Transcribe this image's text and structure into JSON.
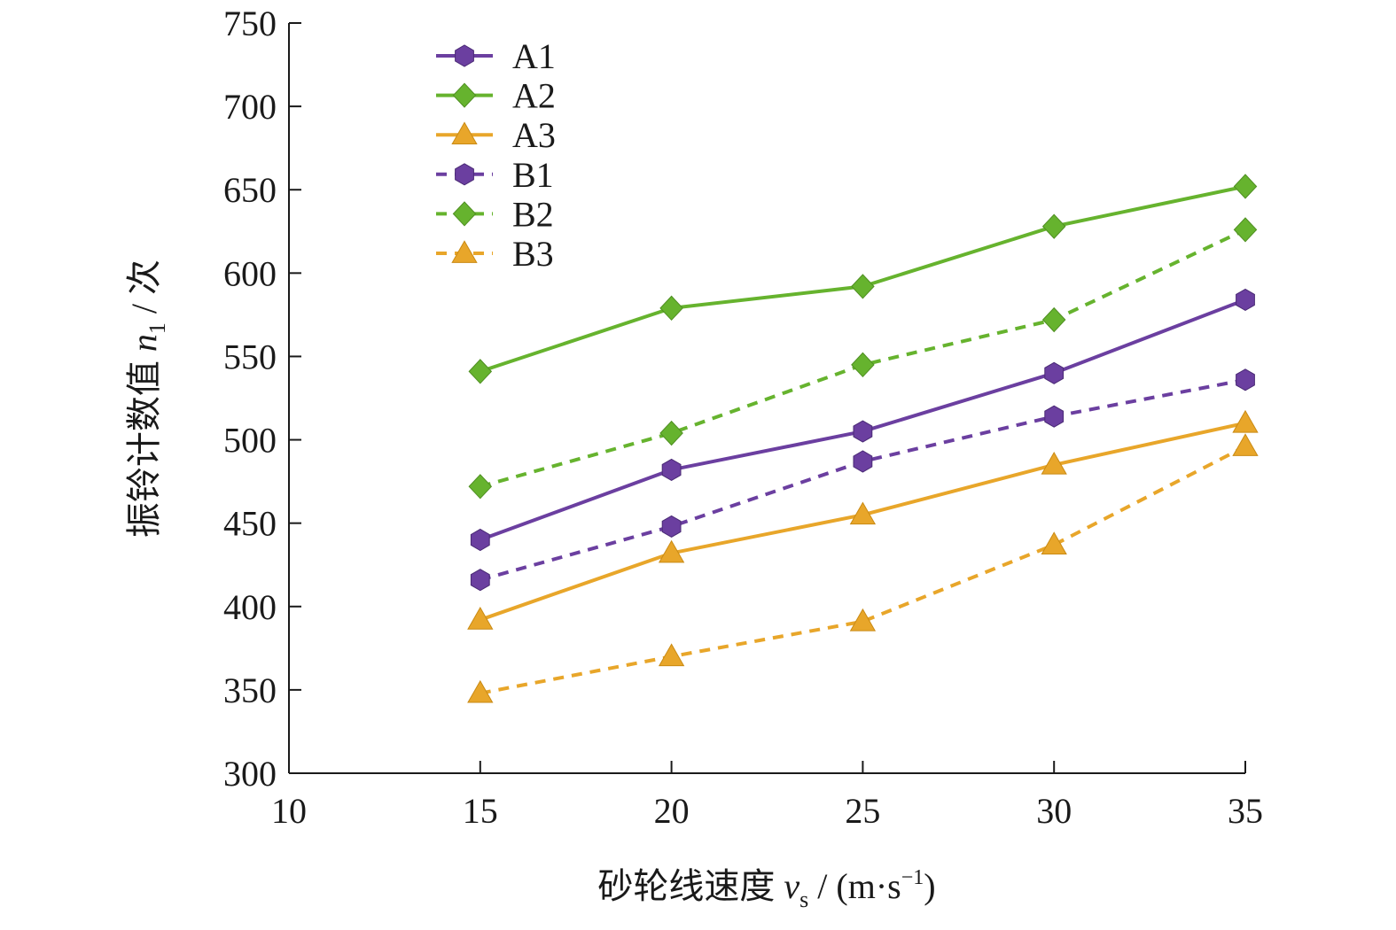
{
  "chart_data": {
    "type": "line",
    "title": "",
    "xlabel": {
      "prefix": "砂轮线速度 ",
      "var": "v",
      "sub": "s",
      "unit_open": " / (m·s",
      "sup": "−1",
      "unit_close": ")"
    },
    "ylabel": {
      "prefix": "振铃计数值 ",
      "var": "n",
      "sub": "1",
      "suffix": " / 次"
    },
    "xlim": [
      10,
      35
    ],
    "ylim": [
      300,
      750
    ],
    "xticks": [
      10,
      15,
      20,
      25,
      30,
      35
    ],
    "yticks": [
      300,
      350,
      400,
      450,
      500,
      550,
      600,
      650,
      700,
      750
    ],
    "x": [
      15,
      20,
      25,
      30,
      35
    ],
    "grid": false,
    "legend_position": "top-left",
    "series": [
      {
        "name": "A1",
        "values": [
          440,
          482,
          505,
          540,
          584
        ],
        "color": "#6b3fa0",
        "marker": "hexagon",
        "dashed": false
      },
      {
        "name": "A2",
        "values": [
          541,
          579,
          592,
          628,
          652
        ],
        "color": "#66b32e",
        "marker": "diamond",
        "dashed": false
      },
      {
        "name": "A3",
        "values": [
          392,
          432,
          455,
          485,
          510
        ],
        "color": "#e8a62a",
        "marker": "triangle",
        "dashed": false
      },
      {
        "name": "B1",
        "values": [
          416,
          448,
          487,
          514,
          536
        ],
        "color": "#6b3fa0",
        "marker": "hexagon",
        "dashed": true
      },
      {
        "name": "B2",
        "values": [
          472,
          504,
          545,
          572,
          626
        ],
        "color": "#66b32e",
        "marker": "diamond",
        "dashed": true
      },
      {
        "name": "B3",
        "values": [
          348,
          370,
          391,
          437,
          496
        ],
        "color": "#e8a62a",
        "marker": "triangle",
        "dashed": true
      }
    ]
  }
}
